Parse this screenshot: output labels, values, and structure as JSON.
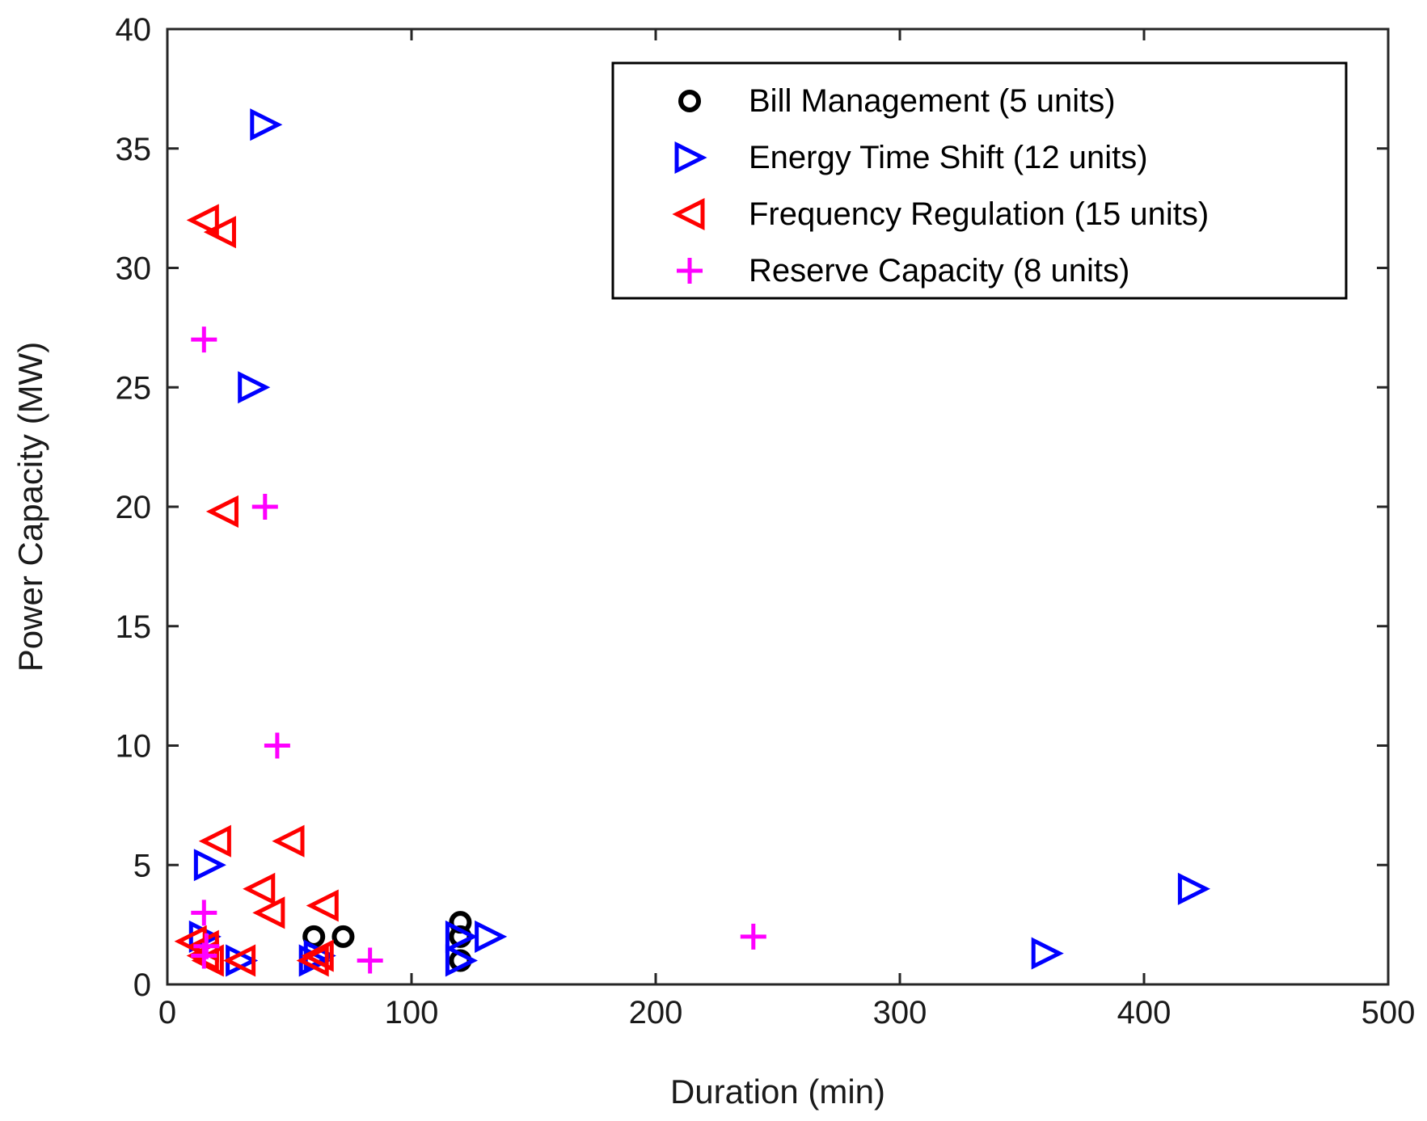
{
  "chart_data": {
    "type": "scatter",
    "title": "",
    "xlabel": "Duration (min)",
    "ylabel": "Power Capacity (MW)",
    "xlim": [
      0,
      500
    ],
    "ylim": [
      0,
      40
    ],
    "xticks": [
      0,
      100,
      200,
      300,
      400,
      500
    ],
    "yticks": [
      0,
      5,
      10,
      15,
      20,
      25,
      30,
      35,
      40
    ],
    "xtick_labels": [
      "0",
      "100",
      "200",
      "300",
      "400",
      "500"
    ],
    "ytick_labels": [
      "0",
      "5",
      "10",
      "15",
      "20",
      "25",
      "30",
      "35",
      "40"
    ],
    "grid": false,
    "legend_position": "top-right",
    "series": [
      {
        "name": "Bill Management (5 units)",
        "marker": "circle",
        "color": "#000000",
        "points": [
          [
            60,
            2
          ],
          [
            72,
            2
          ],
          [
            120,
            2.6
          ],
          [
            120,
            2
          ],
          [
            120,
            1
          ]
        ]
      },
      {
        "name": "Energy Time Shift (12 units)",
        "marker": "triangle-right",
        "color": "#0000ff",
        "points": [
          [
            40,
            36
          ],
          [
            35,
            25
          ],
          [
            17,
            5
          ],
          [
            15,
            2
          ],
          [
            30,
            1
          ],
          [
            60,
            1
          ],
          [
            120,
            2
          ],
          [
            120,
            1
          ],
          [
            132,
            2
          ],
          [
            360,
            1.3
          ],
          [
            420,
            4
          ],
          [
            62,
            1.2
          ]
        ]
      },
      {
        "name": "Frequency Regulation (15 units)",
        "marker": "triangle-left",
        "color": "#ff0000",
        "points": [
          [
            15,
            32
          ],
          [
            22,
            31.5
          ],
          [
            23,
            19.8
          ],
          [
            20,
            6
          ],
          [
            50,
            6
          ],
          [
            38,
            4
          ],
          [
            42,
            3
          ],
          [
            64,
            3.3
          ],
          [
            10,
            1.8
          ],
          [
            15,
            1.2
          ],
          [
            17,
            1
          ],
          [
            30,
            1
          ],
          [
            60,
            1
          ],
          [
            62,
            1.2
          ],
          [
            15,
            1.6
          ]
        ]
      },
      {
        "name": "Reserve Capacity (8 units)",
        "marker": "plus",
        "color": "#ff00ff",
        "points": [
          [
            15,
            27
          ],
          [
            40,
            20
          ],
          [
            45,
            10
          ],
          [
            15,
            3
          ],
          [
            16,
            1.6
          ],
          [
            15,
            1.2
          ],
          [
            83,
            1
          ],
          [
            240,
            2
          ]
        ]
      }
    ]
  }
}
